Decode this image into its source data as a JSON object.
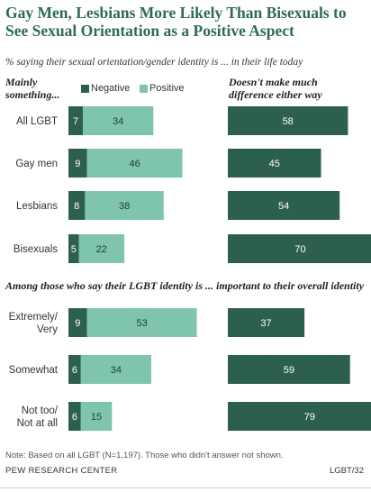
{
  "title": "Gay Men, Lesbians More Likely Than Bisexuals to See Sexual Orientation as a Positive Aspect",
  "subtitle": "% saying their sexual orientation/gender identity is ... in their life today",
  "col_head_left": "Mainly something...",
  "col_head_right": "Doesn't make much difference either way",
  "legend": {
    "negative": "Negative",
    "positive": "Positive"
  },
  "group_head": "Among those who say their LGBT identity is ... important to their overall identity",
  "note": "Note: Based on all LGBT (N=1,197). Those who didn't answer not shown.",
  "source": "PEW RESEARCH CENTER",
  "report_code": "LGBT/32",
  "colors": {
    "negative": "#2d5f4e",
    "positive": "#7ec4ae",
    "no_difference": "#2d5f4e"
  },
  "chart_data": {
    "type": "bar",
    "orientation": "horizontal",
    "categories": [
      "All LGBT",
      "Gay men",
      "Lesbians",
      "Bisexuals",
      "Extremely/ Very",
      "Somewhat",
      "Not too/ Not at all"
    ],
    "series": [
      {
        "name": "Negative",
        "values": [
          7,
          9,
          8,
          5,
          9,
          6,
          6
        ]
      },
      {
        "name": "Positive",
        "values": [
          34,
          46,
          38,
          22,
          53,
          34,
          15
        ]
      },
      {
        "name": "Doesn't make much difference either way",
        "values": [
          58,
          45,
          54,
          70,
          37,
          59,
          79
        ]
      }
    ]
  }
}
